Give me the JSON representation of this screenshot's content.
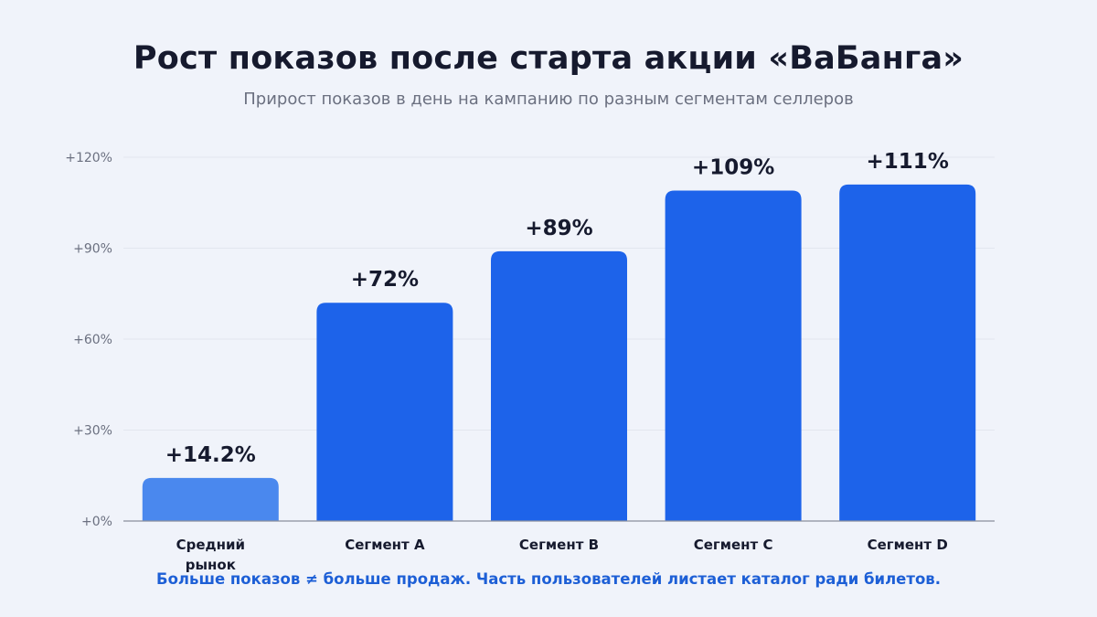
{
  "title": "Рост показов после старта акции «ВаБанга»",
  "subtitle": "Прирост показов в день на кампанию по разным сегментам селлеров",
  "footnote": "Больше показов ≠ больше продаж. Часть пользователей листает каталог ради билетов.",
  "colors": {
    "primary_bar": "#1d63ea",
    "highlight_bar": "#4a88ee",
    "label_text": "#161a2e",
    "tick_text": "#6b7080",
    "grid": "#e2e6ef",
    "axis": "#8a8f9c"
  },
  "chart_data": {
    "type": "bar",
    "title": "Рост показов после старта акции «ВаБанга»",
    "subtitle": "Прирост показов в день на кампанию по разным сегментам селлеров",
    "xlabel": "",
    "ylabel": "",
    "ylim": [
      0,
      120
    ],
    "y_ticks": [
      0,
      30,
      60,
      90,
      120
    ],
    "y_tick_labels": [
      "+0%",
      "+30%",
      "+60%",
      "+90%",
      "+120%"
    ],
    "grid": true,
    "categories": [
      [
        "Средний",
        "рынок"
      ],
      [
        "Сегмент A"
      ],
      [
        "Сегмент B"
      ],
      [
        "Сегмент C"
      ],
      [
        "Сегмент D"
      ]
    ],
    "values": [
      14.2,
      72,
      89,
      109,
      111
    ],
    "data_labels": [
      "+14.2%",
      "+72%",
      "+89%",
      "+109%",
      "+111%"
    ],
    "highlight_index": 0
  }
}
